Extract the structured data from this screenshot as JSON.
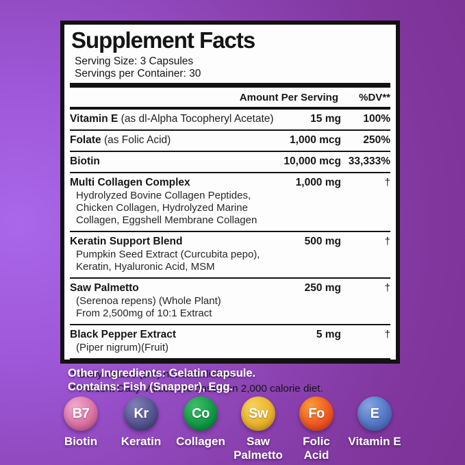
{
  "colors": {
    "background_highlight": "#aa67ea",
    "background_mid": "#8d44b4",
    "background_dark": "#7c3195",
    "panel_bg": "#fdfdfd",
    "panel_border": "#121212",
    "text_dark": "#161616",
    "text_white": "#ffffff"
  },
  "panel": {
    "title": "Supplement Facts",
    "serving_size": "Serving Size: 3 Capsules",
    "servings_per_container": "Servings per Container: 30",
    "header": {
      "amount": "Amount Per Serving",
      "dv": "%DV**"
    },
    "rows": [
      {
        "name": "Vitamin E",
        "detail": "(as dl-Alpha Tocopheryl Acetate)",
        "amount": "15 mg",
        "dv": "100%"
      },
      {
        "name": "Folate",
        "detail": "(as Folic Acid)",
        "amount": "1,000 mcg",
        "dv": "250%"
      },
      {
        "name": "Biotin",
        "detail": "",
        "amount": "10,000 mcg",
        "dv": "33,333%"
      },
      {
        "name": "Multi Collagen Complex",
        "detail": "",
        "amount": "1,000 mg",
        "dv": "†",
        "sub": [
          "Hydrolyzed Bovine Collagen Peptides,",
          "Chicken Collagen, Hydrolyzed Marine",
          "Collagen, Eggshell Membrane Collagen"
        ]
      },
      {
        "name": "Keratin Support Blend",
        "detail": "",
        "amount": "500 mg",
        "dv": "†",
        "sub": [
          "Pumpkin Seed Extract (Curcubita pepo),",
          "Keratin, Hyaluronic Acid, MSM"
        ]
      },
      {
        "name": "Saw Palmetto",
        "detail": "",
        "amount": "250 mg",
        "dv": "†",
        "sub": [
          "(Serenoa repens) (Whole Plant)",
          "From 2,500mg of 10:1 Extract"
        ]
      },
      {
        "name": "Black Pepper Extract",
        "detail": "",
        "amount": "5 mg",
        "dv": "†",
        "sub": [
          "(Piper nigrum)(Fruit)"
        ]
      }
    ],
    "footnotes": [
      "† Daily Values (DV) not established.",
      "**Percent Daily Values are based on 2,000 calorie diet."
    ]
  },
  "below_panel": {
    "lines": [
      "Other Ingredients: Gelatin capsule.",
      "Contains: Fish (Snapper), Egg."
    ]
  },
  "badges": [
    {
      "symbol": "B7",
      "label": [
        "Biotin"
      ],
      "colors": [
        "#f2a8ca",
        "#dd74a6",
        "#bf4e7e"
      ]
    },
    {
      "symbol": "Kr",
      "label": [
        "Keratin"
      ],
      "colors": [
        "#8080b8",
        "#55558f",
        "#3c3c72"
      ]
    },
    {
      "symbol": "Co",
      "label": [
        "Collagen"
      ],
      "colors": [
        "#3dbd69",
        "#149a48",
        "#077a35"
      ]
    },
    {
      "symbol": "Sw",
      "label": [
        "Saw",
        "Palmetto"
      ],
      "colors": [
        "#f7d05e",
        "#eab42d",
        "#d0951a"
      ]
    },
    {
      "symbol": "Fo",
      "label": [
        "Folic",
        "Acid"
      ],
      "colors": [
        "#f89b37",
        "#ef5a22",
        "#e2361a"
      ]
    },
    {
      "symbol": "E",
      "label": [
        "Vitamin E"
      ],
      "colors": [
        "#86a4e1",
        "#5377c5",
        "#3e62af"
      ]
    }
  ]
}
